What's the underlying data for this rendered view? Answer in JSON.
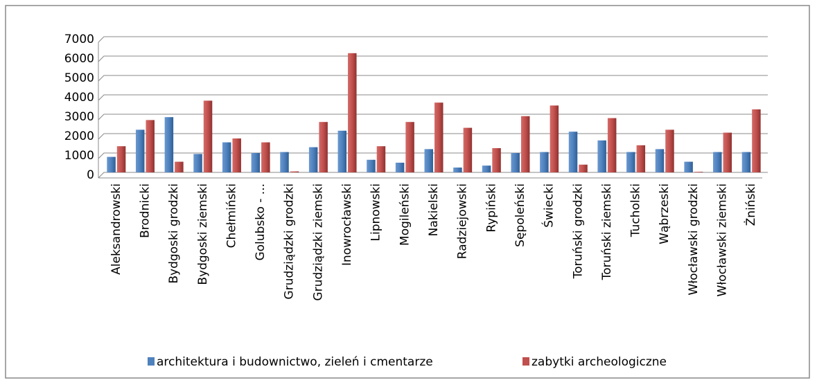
{
  "chart_data": {
    "type": "bar",
    "categories": [
      "Aleksandrowski",
      "Brodnicki",
      "Bydgoski grodzki",
      "Bydgoski ziemski",
      "Chełmiński",
      "Golubsko - ...",
      "Grudziądzki grodzki",
      "Grudziądzki ziemski",
      "Inowrocławski",
      "Lipnowski",
      "Mogileński",
      "Nakielski",
      "Radziejowski",
      "Rypiński",
      "Sępoleński",
      "Świecki",
      "Toruński grodzki",
      "Toruński ziemski",
      "Tucholski",
      "Wąbrzeski",
      "Włocławski grodzki",
      "Włocławski ziemski",
      "Żniński"
    ],
    "series": [
      {
        "name": "architektura i budownictwo, zieleń i cmentarze",
        "color": "#4f81bd",
        "values": [
          800,
          2200,
          2850,
          950,
          1550,
          1000,
          1050,
          1300,
          2150,
          650,
          500,
          1200,
          250,
          350,
          1000,
          1050,
          2100,
          1650,
          1050,
          1200,
          550,
          1050,
          1050
        ]
      },
      {
        "name": "zabytki archeologiczne",
        "color": "#c0504d",
        "values": [
          1350,
          2700,
          550,
          3700,
          1750,
          1550,
          50,
          2600,
          6150,
          1350,
          2600,
          3600,
          2300,
          1250,
          2900,
          3450,
          400,
          2800,
          1400,
          2200,
          30,
          2050,
          3250
        ]
      }
    ],
    "ylim": [
      0,
      7000
    ],
    "yticks": [
      0,
      1000,
      2000,
      3000,
      4000,
      5000,
      6000,
      7000
    ],
    "grid": true,
    "legend": "bottom"
  }
}
